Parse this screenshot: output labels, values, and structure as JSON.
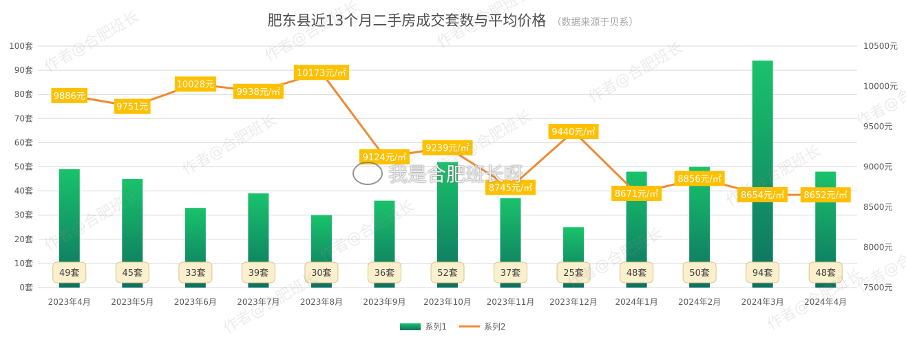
{
  "title": "肥东县近13个月二手房成交套数与平均价格",
  "subtitle": "（数据来源于贝系）",
  "watermark": {
    "repeated_text": "作者@合肥班长",
    "credit": "我是合肥班长呀"
  },
  "legend": {
    "position": "bottom",
    "items": [
      {
        "label": "系列1",
        "kind": "bar"
      },
      {
        "label": "系列2",
        "kind": "line"
      }
    ]
  },
  "colors": {
    "bar_top": "#19c36b",
    "bar_bottom": "#0d7060",
    "line": "#ee8a32",
    "price_label_bg": "#ffc000",
    "count_label_bg": "#fbf0cd",
    "count_label_border": "#d9c38a",
    "grid": "#d9d9d9",
    "axis_text": "#595959"
  },
  "chart_data": {
    "type": "bar",
    "combo": "bar+line (dual axis)",
    "categories": [
      "2023年4月",
      "2023年5月",
      "2023年6月",
      "2023年7月",
      "2023年8月",
      "2023年9月",
      "2023年10月",
      "2023年11月",
      "2023年12月",
      "2024年1月",
      "2024年2月",
      "2024年3月",
      "2024年4月"
    ],
    "series": [
      {
        "name": "系列1",
        "type": "bar",
        "axis": "left",
        "values": [
          49,
          45,
          33,
          39,
          30,
          36,
          52,
          37,
          25,
          48,
          50,
          94,
          48
        ],
        "data_labels": [
          "49套",
          "45套",
          "33套",
          "39套",
          "30套",
          "36套",
          "52套",
          "37套",
          "25套",
          "48套",
          "50套",
          "94套",
          "48套"
        ]
      },
      {
        "name": "系列2",
        "type": "line",
        "axis": "right",
        "values": [
          9886,
          9751,
          10028,
          9938,
          10173,
          9124,
          9239,
          8745,
          9440,
          8671,
          8856,
          8654,
          8652
        ],
        "data_labels": [
          "9886元",
          "9751元",
          "10028元",
          "9938元/㎡",
          "10173元/㎡",
          "9124元/㎡",
          "9239元/㎡",
          "8745元/㎡",
          "9440元/㎡",
          "8671元/㎡",
          "8856元/㎡",
          "8654元/㎡",
          "8652元/㎡"
        ]
      }
    ],
    "y_left": {
      "ylim": [
        0,
        100
      ],
      "ticks": [
        0,
        10,
        20,
        30,
        40,
        50,
        60,
        70,
        80,
        90,
        100
      ],
      "tick_labels": [
        "0套",
        "10套",
        "20套",
        "30套",
        "40套",
        "50套",
        "60套",
        "70套",
        "80套",
        "90套",
        "100套"
      ]
    },
    "y_right": {
      "ylim": [
        7500,
        10500
      ],
      "ticks": [
        7500,
        8000,
        8500,
        9000,
        9500,
        10000,
        10500
      ],
      "tick_labels": [
        "7500元",
        "8000元",
        "8500元",
        "9000元",
        "9500元",
        "10000元",
        "10500元"
      ]
    },
    "grid": true
  }
}
